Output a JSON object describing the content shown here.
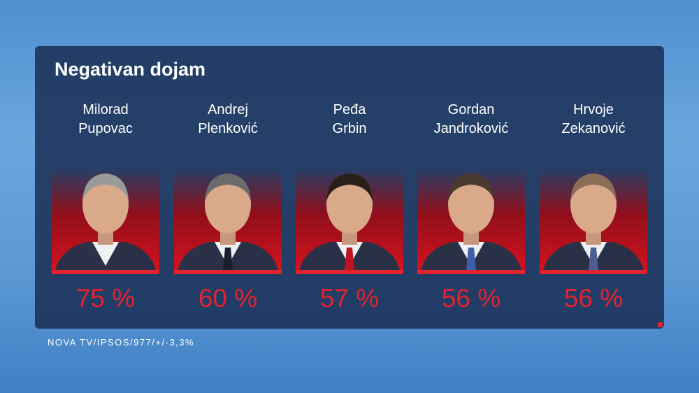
{
  "title": "Negativan dojam",
  "candidates": [
    {
      "first": "Milorad",
      "last": "Pupovac",
      "percent": "75 %"
    },
    {
      "first": "Andrej",
      "last": "Plenković",
      "percent": "60 %"
    },
    {
      "first": "Peđa",
      "last": "Grbin",
      "percent": "57 %"
    },
    {
      "first": "Gordan",
      "last": "Jandroković",
      "percent": "56 %"
    },
    {
      "first": "Hrvoje",
      "last": "Zekanović",
      "percent": "56 %"
    }
  ],
  "source": "NOVA TV/IPSOS/977/+/-3,3%"
}
